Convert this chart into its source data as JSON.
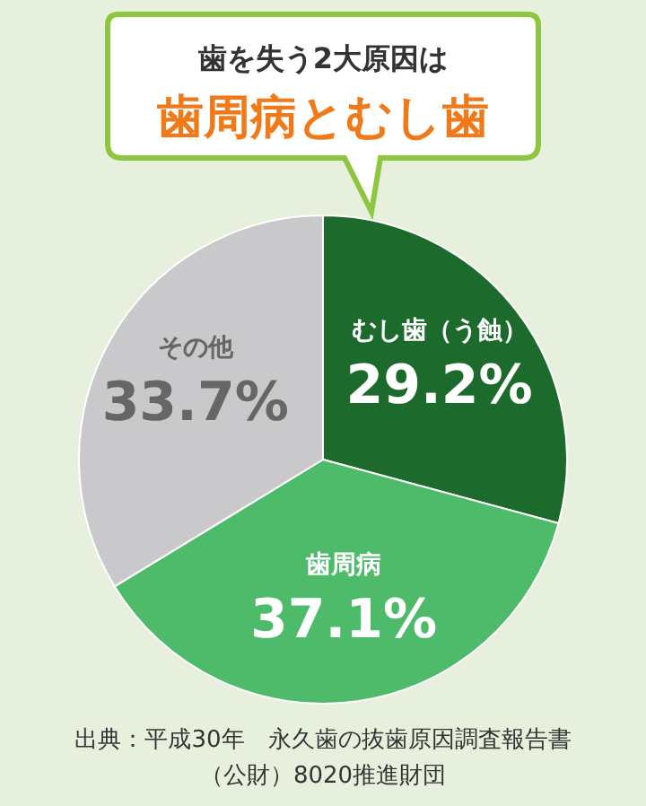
{
  "chart_data": {
    "type": "pie",
    "title": "歯を失う2大原因は",
    "subtitle": "歯周病とむし歯",
    "categories": [
      "むし歯（う蝕）",
      "歯周病",
      "その他"
    ],
    "values": [
      29.2,
      37.1,
      33.7
    ],
    "colors": [
      "#1d6b2c",
      "#4dbb6a",
      "#c9c9cc"
    ],
    "value_labels": [
      "29.2%",
      "37.1%",
      "33.7%"
    ],
    "annotations": [
      "出典：平成30年　永久歯の抜歯原因調査報告書",
      "（公財）8020推進財団"
    ]
  }
}
